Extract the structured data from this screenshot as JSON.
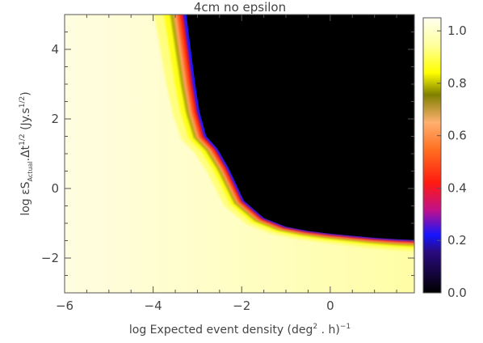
{
  "chart_data": {
    "type": "heatmap",
    "title": "4cm no epsilon",
    "xlabel": {
      "prefix": "log Expected event density (deg",
      "sup1": "2",
      "middle": " . h)",
      "sup2": "−1"
    },
    "ylabel": {
      "prefix": "log εS",
      "sub": "Actual",
      "middle": ".Δt",
      "sup1": "1/2",
      "mid2": " (Jy.s",
      "sup2": "1/2",
      "suffix": ")"
    },
    "xlim": [
      -6,
      1.9
    ],
    "ylim": [
      -3,
      5
    ],
    "xticks": [
      -6,
      -4,
      -2,
      0
    ],
    "xtick_labels": [
      "−6",
      "−4",
      "−2",
      "0"
    ],
    "yticks": [
      -2,
      0,
      2,
      4
    ],
    "ytick_labels": [
      "−2",
      "0",
      "2",
      "4"
    ],
    "colorbar": {
      "range": [
        0,
        1.05
      ],
      "ticks": [
        0.0,
        0.2,
        0.4,
        0.6,
        0.8,
        1.0
      ],
      "tick_labels": [
        "0.0",
        "0.2",
        "0.4",
        "0.6",
        "0.8",
        "1.0"
      ]
    },
    "boundary_x": [
      -3.25,
      -3.15,
      -3.05,
      -2.95,
      -2.8,
      -2.55,
      -2.3,
      -1.95,
      -1.5,
      -1.0,
      -0.5,
      0.0,
      0.5,
      1.0,
      1.5,
      1.9
    ],
    "boundary_y": [
      5,
      4,
      3,
      2.2,
      1.5,
      1.15,
      0.6,
      -0.35,
      -0.85,
      -1.1,
      -1.22,
      -1.3,
      -1.36,
      -1.42,
      -1.46,
      -1.48
    ],
    "colors": {
      "background": "#ffffff",
      "text": "#444444",
      "colormap": [
        "#000000",
        "#3a0a8c",
        "#1010ff",
        "#c0108a",
        "#ff1a10",
        "#ff6f20",
        "#ffb070",
        "#808000",
        "#ffff00",
        "#ffff9c",
        "#fffff0"
      ]
    }
  }
}
